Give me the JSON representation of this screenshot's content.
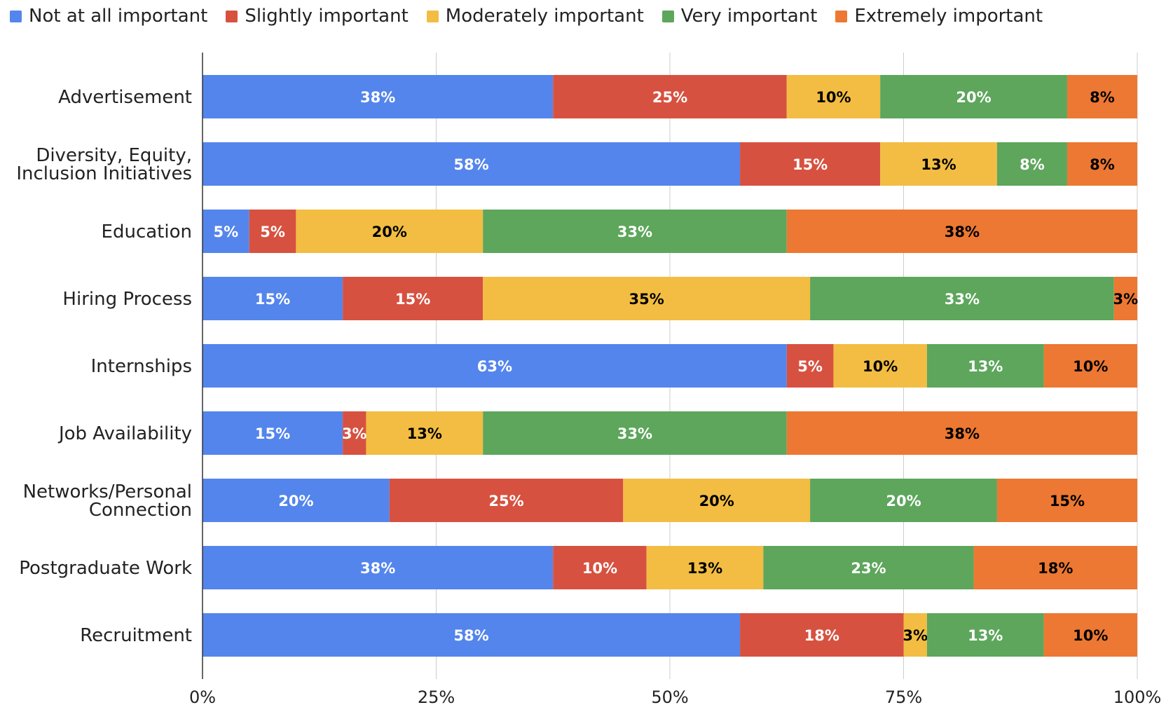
{
  "chart_data": {
    "type": "bar",
    "orientation": "horizontal",
    "stacked": true,
    "normalized": true,
    "categories": [
      [
        "Advertisement"
      ],
      [
        "Diversity, Equity,",
        "Inclusion Initiatives"
      ],
      [
        "Education"
      ],
      [
        "Hiring Process"
      ],
      [
        "Internships"
      ],
      [
        "Job Availability"
      ],
      [
        "Networks/Personal",
        "Connection"
      ],
      [
        "Postgraduate Work"
      ],
      [
        "Recruitment"
      ]
    ],
    "series": [
      {
        "name": "Not at all important",
        "color": "#5485ec",
        "label_color": "#ffffff",
        "values": [
          37.5,
          57.5,
          5,
          15,
          62.5,
          15,
          20,
          37.5,
          57.5
        ],
        "labels": [
          "38%",
          "58%",
          "5%",
          "15%",
          "63%",
          "15%",
          "20%",
          "38%",
          "58%"
        ]
      },
      {
        "name": "Slightly important",
        "color": "#d75140",
        "label_color": "#ffffff",
        "values": [
          25,
          15,
          5,
          15,
          5,
          2.5,
          25,
          10,
          17.5
        ],
        "labels": [
          "25%",
          "15%",
          "5%",
          "15%",
          "5%",
          "3%",
          "25%",
          "10%",
          "18%"
        ]
      },
      {
        "name": "Moderately important",
        "color": "#f2bd42",
        "label_color": "#000000",
        "values": [
          10,
          12.5,
          20,
          35,
          10,
          12.5,
          20,
          12.5,
          2.5
        ],
        "labels": [
          "10%",
          "13%",
          "20%",
          "35%",
          "10%",
          "13%",
          "20%",
          "13%",
          "3%"
        ]
      },
      {
        "name": "Very important",
        "color": "#5da65c",
        "label_color": "#ffffff",
        "values": [
          20,
          7.5,
          32.5,
          32.5,
          12.5,
          32.5,
          20,
          22.5,
          12.5
        ],
        "labels": [
          "20%",
          "8%",
          "33%",
          "33%",
          "13%",
          "33%",
          "20%",
          "23%",
          "13%"
        ]
      },
      {
        "name": "Extremely important",
        "color": "#ec7833",
        "label_color": "#000000",
        "values": [
          7.5,
          7.5,
          37.5,
          2.5,
          10,
          37.5,
          15,
          17.5,
          10
        ],
        "labels": [
          "8%",
          "8%",
          "38%",
          "3%",
          "10%",
          "38%",
          "15%",
          "18%",
          "10%"
        ]
      }
    ],
    "x_ticks": [
      "0%",
      "25%",
      "50%",
      "75%",
      "100%"
    ],
    "xlim": [
      0,
      100
    ],
    "grid": true,
    "legend_position": "top"
  }
}
